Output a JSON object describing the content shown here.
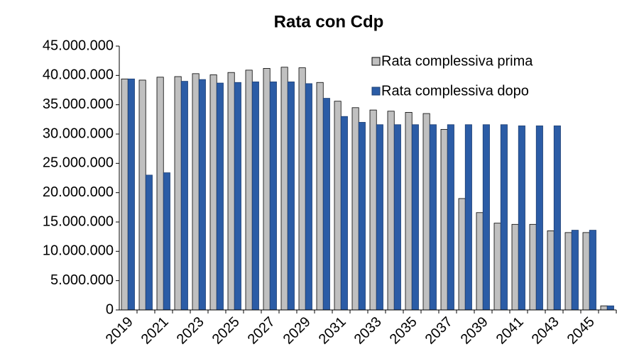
{
  "chart_data": {
    "type": "bar",
    "title": "Rata con Cdp",
    "categories": [
      "2019",
      null,
      "2021",
      null,
      "2023",
      null,
      "2025",
      null,
      "2027",
      null,
      "2029",
      null,
      "2031",
      null,
      "2033",
      null,
      "2035",
      null,
      "2037",
      null,
      "2039",
      null,
      "2041",
      null,
      "2043",
      null,
      "2045",
      null
    ],
    "series": [
      {
        "name": "Rata complessiva prima",
        "color": "#c0c0c0",
        "values": [
          39400000,
          39200000,
          39700000,
          39800000,
          40300000,
          40100000,
          40500000,
          40900000,
          41200000,
          41400000,
          41300000,
          38800000,
          35600000,
          34500000,
          34100000,
          33900000,
          33700000,
          33500000,
          30800000,
          19000000,
          16600000,
          14800000,
          14600000,
          14600000,
          13500000,
          13200000,
          13200000,
          700000
        ]
      },
      {
        "name": "Rata complessiva dopo",
        "color": "#2b5ca6",
        "values": [
          39400000,
          23000000,
          23400000,
          39000000,
          39300000,
          38700000,
          38800000,
          38900000,
          38900000,
          38900000,
          38600000,
          36100000,
          33000000,
          32000000,
          31600000,
          31600000,
          31600000,
          31600000,
          31600000,
          31600000,
          31600000,
          31600000,
          31400000,
          31400000,
          31400000,
          13600000,
          13600000,
          700000
        ]
      }
    ],
    "ylim": [
      0,
      45000000
    ],
    "yticks": [
      0,
      {
        "value": 5000000,
        "label": "5.000.000"
      },
      {
        "value": 10000000,
        "label": "10.000.000"
      },
      {
        "value": 15000000,
        "label": "15.000.000"
      },
      {
        "value": 20000000,
        "label": "20.000.000"
      },
      {
        "value": 25000000,
        "label": "25.000.000"
      },
      {
        "value": 30000000,
        "label": "30.000.000"
      },
      {
        "value": 35000000,
        "label": "35.000.000"
      },
      {
        "value": 40000000,
        "label": "40.000.000"
      },
      {
        "value": 45000000,
        "label": "45.000.000"
      }
    ],
    "legend": "top-right"
  }
}
